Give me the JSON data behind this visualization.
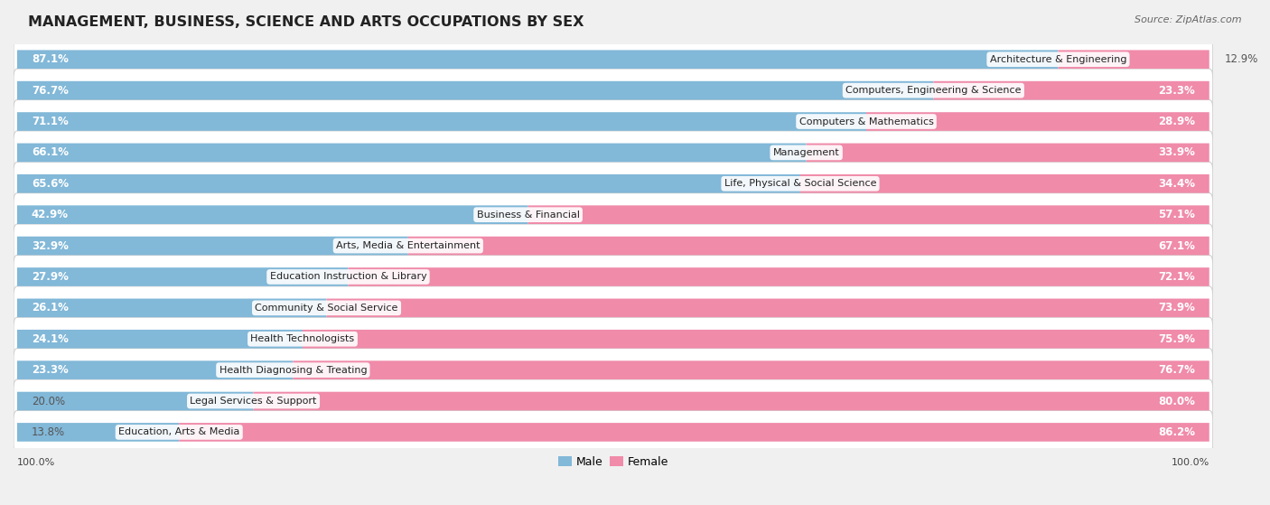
{
  "title": "MANAGEMENT, BUSINESS, SCIENCE AND ARTS OCCUPATIONS BY SEX",
  "source": "Source: ZipAtlas.com",
  "categories": [
    "Architecture & Engineering",
    "Computers, Engineering & Science",
    "Computers & Mathematics",
    "Management",
    "Life, Physical & Social Science",
    "Business & Financial",
    "Arts, Media & Entertainment",
    "Education Instruction & Library",
    "Community & Social Service",
    "Health Technologists",
    "Health Diagnosing & Treating",
    "Legal Services & Support",
    "Education, Arts & Media"
  ],
  "male_pct": [
    87.1,
    76.7,
    71.1,
    66.1,
    65.6,
    42.9,
    32.9,
    27.9,
    26.1,
    24.1,
    23.3,
    20.0,
    13.8
  ],
  "female_pct": [
    12.9,
    23.3,
    28.9,
    33.9,
    34.4,
    57.1,
    67.1,
    72.1,
    73.9,
    75.9,
    76.7,
    80.0,
    86.2
  ],
  "male_color": "#82b8d8",
  "female_color": "#f08baa",
  "bg_color": "#f0f0f0",
  "row_bg": "#ffffff",
  "title_fontsize": 11.5,
  "label_fontsize": 8.5,
  "cat_fontsize": 8.0,
  "legend_fontsize": 9,
  "source_fontsize": 8
}
